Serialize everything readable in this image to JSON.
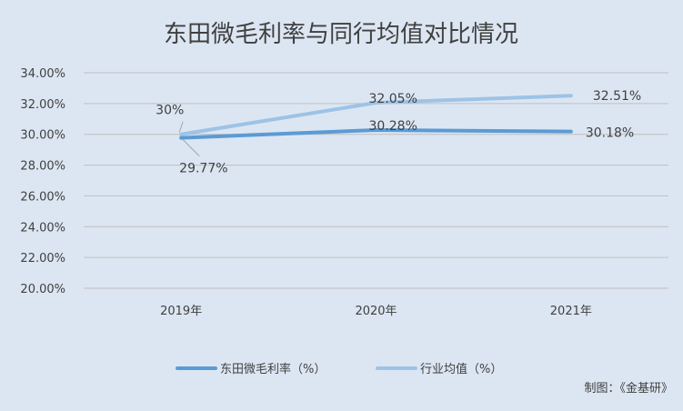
{
  "chart_data": {
    "type": "line",
    "title": "东田微毛利率与同行均值对比情况",
    "categories": [
      "2019年",
      "2020年",
      "2021年"
    ],
    "ylim": [
      20,
      34
    ],
    "yticks": [
      "20.00%",
      "22.00%",
      "24.00%",
      "26.00%",
      "28.00%",
      "30.00%",
      "32.00%",
      "34.00%"
    ],
    "grid": true,
    "legend_position": "bottom",
    "series": [
      {
        "name": "东田微毛利率（%）",
        "values": [
          29.77,
          30.28,
          30.18
        ],
        "labels": [
          "29.77%",
          "30.28%",
          "30.18%"
        ],
        "color": "#5b9bd5"
      },
      {
        "name": "行业均值（%）",
        "values": [
          30,
          32.05,
          32.51
        ],
        "labels": [
          "30%",
          "32.05%",
          "32.51%"
        ],
        "color": "#9dc3e6"
      }
    ]
  },
  "credit": "制图：《金基研》"
}
